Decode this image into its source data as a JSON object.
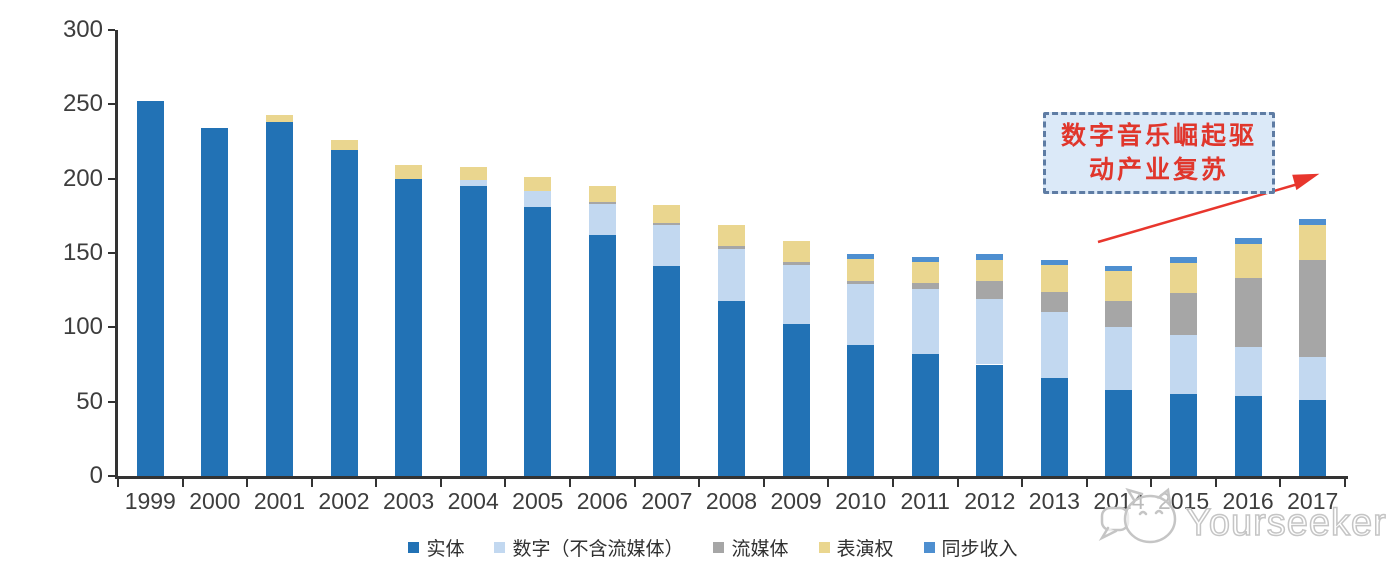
{
  "chart_data": {
    "type": "bar",
    "stacked": true,
    "title": "",
    "xlabel": "",
    "ylabel": "",
    "ylim": [
      0,
      300
    ],
    "yticks": [
      0,
      50,
      100,
      150,
      200,
      250,
      300
    ],
    "grid": false,
    "legend_position": "bottom",
    "categories": [
      "1999",
      "2000",
      "2001",
      "2002",
      "2003",
      "2004",
      "2005",
      "2006",
      "2007",
      "2008",
      "2009",
      "2010",
      "2011",
      "2012",
      "2013",
      "2014",
      "2015",
      "2016",
      "2017"
    ],
    "series": [
      {
        "name": "实体",
        "color": "#2272b5",
        "values": [
          252,
          234,
          238,
          219,
          200,
          195,
          181,
          162,
          141,
          118,
          102,
          88,
          82,
          75,
          66,
          58,
          55,
          54,
          51
        ]
      },
      {
        "name": "数字（不含流媒体）",
        "color": "#c2d8f0",
        "values": [
          0,
          0,
          0,
          0,
          0,
          4,
          11,
          21,
          28,
          35,
          40,
          41,
          44,
          44,
          44,
          42,
          40,
          33,
          29
        ]
      },
      {
        "name": "流媒体",
        "color": "#a6a6a6",
        "values": [
          0,
          0,
          0,
          0,
          0,
          0,
          0,
          1,
          1,
          2,
          2,
          2,
          4,
          12,
          14,
          18,
          28,
          46,
          65
        ]
      },
      {
        "name": "表演权",
        "color": "#ead68f",
        "values": [
          0,
          0,
          5,
          7,
          9,
          9,
          9,
          11,
          12,
          14,
          14,
          15,
          14,
          14,
          18,
          20,
          20,
          23,
          24
        ]
      },
      {
        "name": "同步收入",
        "color": "#4e8fd0",
        "values": [
          0,
          0,
          0,
          0,
          0,
          0,
          0,
          0,
          0,
          0,
          0,
          3,
          3,
          4,
          3,
          3,
          4,
          4,
          4
        ]
      }
    ]
  },
  "annotation": {
    "line1": "数字音乐崛起驱",
    "line2": "动产业复苏"
  },
  "watermark": {
    "text": "Yourseeker"
  },
  "colors": {
    "annotation_box_fill": "#dbe9f8",
    "annotation_border": "#5e7ca4",
    "annotation_text": "#e0362c",
    "arrow": "#e8362d",
    "axis": "#333333",
    "axis_label": "#3d3d3d",
    "watermark": "#c5c5c5"
  }
}
